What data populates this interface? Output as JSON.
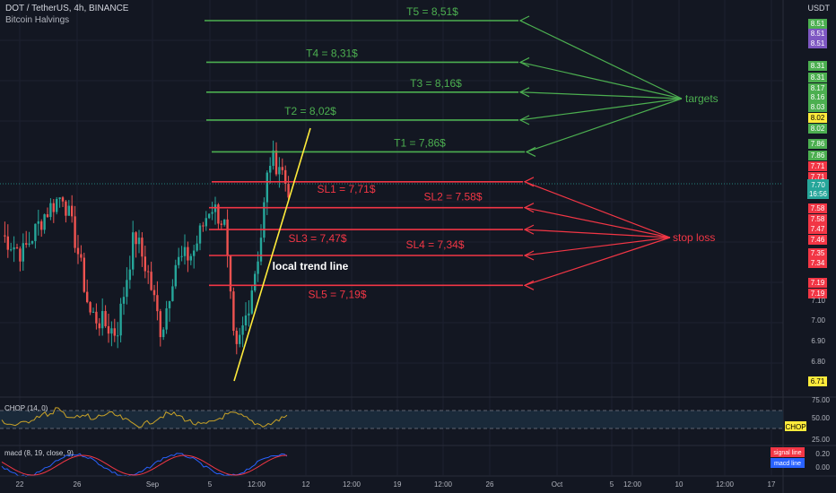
{
  "header": {
    "symbol": "DOT / TetherUS, 4h, BINANCE",
    "indicator": "Bitcoin Halvings",
    "currency": "USDT"
  },
  "chart_data": {
    "type": "candlestick",
    "y_ticks": [
      "7.10",
      "7.00",
      "6.90",
      "6.80"
    ],
    "current_price": "7.70",
    "countdown": "16:56",
    "low_badge": "6.71",
    "x_ticks": [
      "22",
      "26",
      "Sep",
      "5",
      "12:00",
      "12",
      "12:00",
      "19",
      "12:00",
      "26",
      "Oct",
      "5",
      "12:00",
      "10",
      "12:00",
      "17"
    ],
    "targets_label": "targets",
    "stoploss_label": "stop loss",
    "trend_label": "local trend line",
    "targets": [
      {
        "name": "T5 = 8,51$",
        "price": 8.51
      },
      {
        "name": "T4 = 8,31$",
        "price": 8.31
      },
      {
        "name": "T3 = 8,16$",
        "price": 8.16
      },
      {
        "name": "T2 = 8,02$",
        "price": 8.02
      },
      {
        "name": "T1 = 7,86$",
        "price": 7.86
      }
    ],
    "stops": [
      {
        "name": "SL1 = 7,71$",
        "price": 7.71
      },
      {
        "name": "SL2 = 7.58$",
        "price": 7.58
      },
      {
        "name": "SL3 = 7,47$",
        "price": 7.47
      },
      {
        "name": "SL4 = 7,34$",
        "price": 7.34
      },
      {
        "name": "SL5 = 7,19$",
        "price": 7.19
      }
    ],
    "right_badges_green": [
      "8.51",
      "8.51",
      "8.51",
      "8.31",
      "8.31",
      "8.17",
      "8.16",
      "8.03",
      "8.02",
      "8.02",
      "7.86",
      "7.86"
    ],
    "right_badges_red": [
      "7.71",
      "7.71",
      "7.58",
      "7.58",
      "7.47",
      "7.46",
      "7.35",
      "7.34",
      "7.19",
      "7.19"
    ],
    "chop": {
      "label": "CHOP (14, 0)",
      "badge": "CHOP",
      "ticks": [
        "75.00",
        "50.00",
        "25.00"
      ]
    },
    "macd": {
      "label": "macd (8, 19, close, 9)",
      "signal": "signal line",
      "macd_line": "macd line",
      "ticks": [
        "0.20",
        "0.00"
      ]
    }
  }
}
